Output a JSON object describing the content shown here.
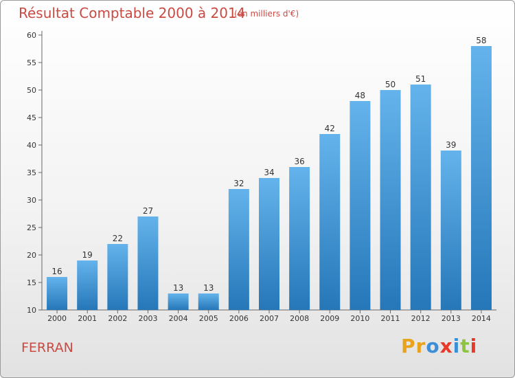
{
  "chart_data": {
    "type": "bar",
    "title": "Résultat Comptable 2000 à 2014",
    "subtitle": "(en milliers d'€)",
    "categories": [
      "2000",
      "2001",
      "2002",
      "2003",
      "2004",
      "2005",
      "2006",
      "2007",
      "2008",
      "2009",
      "2010",
      "2011",
      "2012",
      "2013",
      "2014"
    ],
    "values": [
      16,
      19,
      22,
      27,
      13,
      13,
      32,
      34,
      36,
      42,
      48,
      50,
      51,
      39,
      58
    ],
    "ylim": [
      10,
      60
    ],
    "yticks": [
      10,
      15,
      20,
      25,
      30,
      35,
      40,
      45,
      50,
      55,
      60
    ],
    "xlabel": "",
    "ylabel": "",
    "grid": false,
    "bar_color_top": "#64b3ec",
    "bar_color_bottom": "#2577b8"
  },
  "footer": {
    "commune": "FERRAN",
    "logo_text": "Proxiti",
    "logo_colors": [
      "#e8a21b",
      "#e8a21b",
      "#3b8fd6",
      "#e8382a",
      "#3b8fd6",
      "#8cc63f",
      "#e8382a"
    ]
  }
}
